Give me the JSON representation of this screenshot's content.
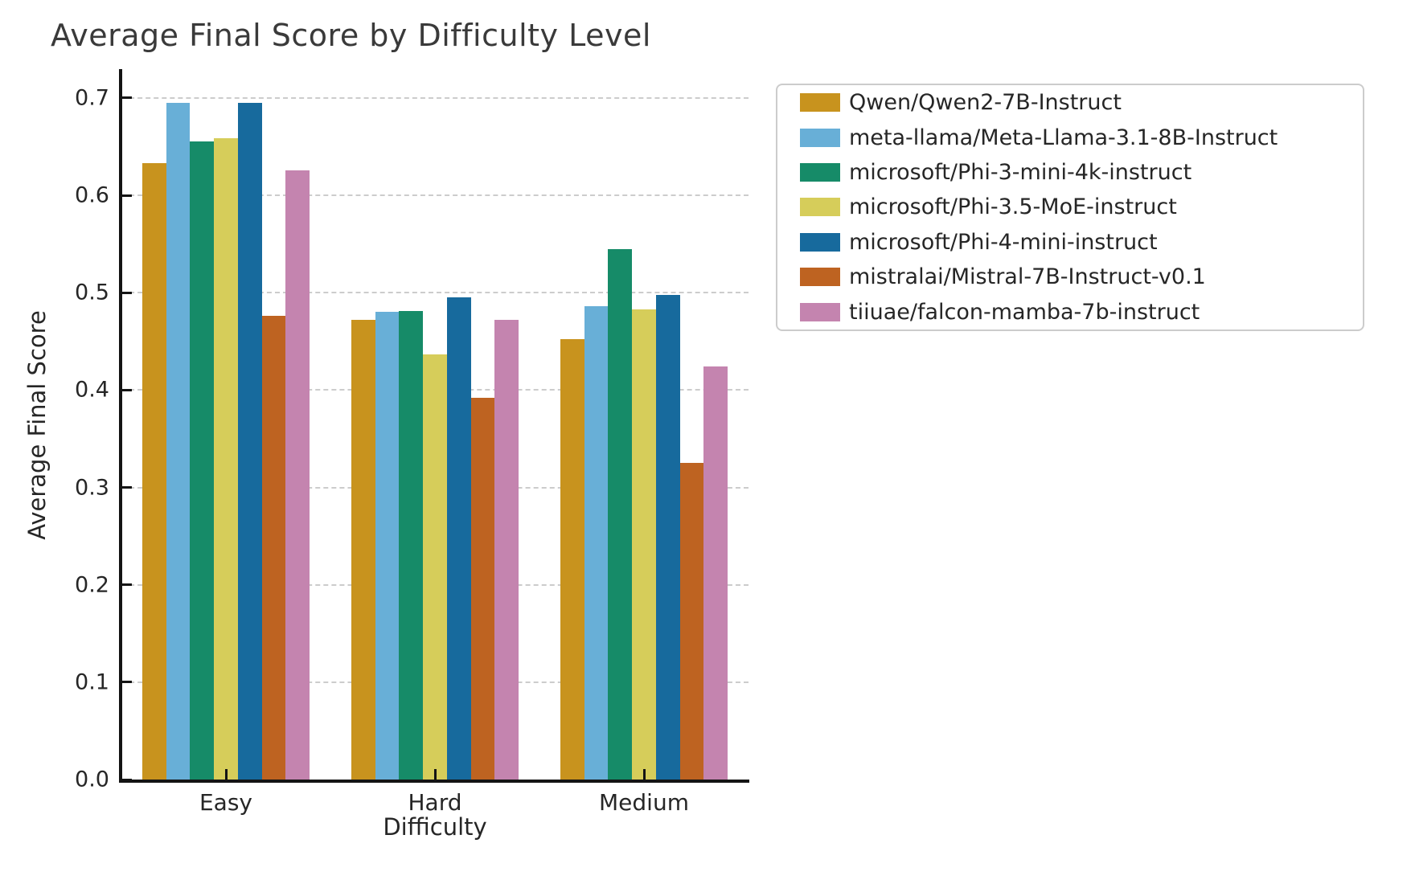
{
  "title": "Average Final Score by Difficulty Level",
  "chart_data": {
    "type": "bar",
    "title": "Average Final Score by Difficulty Level",
    "xlabel": "Difficulty",
    "ylabel": "Average Final Score",
    "categories": [
      "Easy",
      "Hard",
      "Medium"
    ],
    "series": [
      {
        "name": "Qwen/Qwen2-7B-Instruct",
        "color": "#c8931e",
        "values": [
          0.633,
          0.472,
          0.452
        ]
      },
      {
        "name": "meta-llama/Meta-Llama-3.1-8B-Instruct",
        "color": "#68afd7",
        "values": [
          0.695,
          0.48,
          0.486
        ]
      },
      {
        "name": "microsoft/Phi-3-mini-4k-instruct",
        "color": "#168b68",
        "values": [
          0.655,
          0.481,
          0.545
        ]
      },
      {
        "name": "microsoft/Phi-3.5-MoE-instruct",
        "color": "#d6cd5a",
        "values": [
          0.659,
          0.437,
          0.483
        ]
      },
      {
        "name": "microsoft/Phi-4-mini-instruct",
        "color": "#176a9d",
        "values": [
          0.695,
          0.495,
          0.498
        ]
      },
      {
        "name": "mistralai/Mistral-7B-Instruct-v0.1",
        "color": "#be6321",
        "values": [
          0.476,
          0.392,
          0.325
        ]
      },
      {
        "name": "tiiuae/falcon-mamba-7b-instruct",
        "color": "#c484af",
        "values": [
          0.626,
          0.472,
          0.424
        ]
      }
    ],
    "ylim": [
      0,
      0.728
    ],
    "yticks": [
      0.0,
      0.1,
      0.2,
      0.3,
      0.4,
      0.5,
      0.6,
      0.7
    ],
    "ytick_decimals": 1,
    "grid": {
      "axis": "y",
      "style": "dashed",
      "color": "#cccccc"
    },
    "legend_position": "upper-right-outside",
    "bar_group_fill": 0.8
  },
  "colors": {
    "text": "#262626",
    "title": "#3a3a3a",
    "axis": "#141414",
    "grid": "#cccccc",
    "legend_border": "#cccccc",
    "background": "#ffffff"
  }
}
